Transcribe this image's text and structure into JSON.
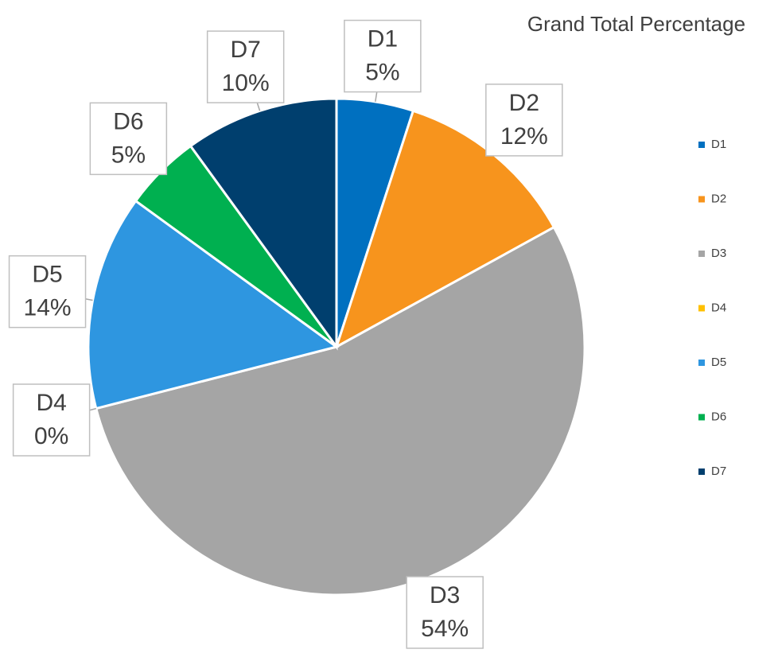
{
  "chart_data": {
    "type": "pie",
    "title": "Grand Total Percentage",
    "categories": [
      "D1",
      "D2",
      "D3",
      "D4",
      "D5",
      "D6",
      "D7"
    ],
    "values": [
      5,
      12,
      54,
      0,
      14,
      5,
      10
    ],
    "value_labels": [
      "5%",
      "12%",
      "54%",
      "0%",
      "14%",
      "5%",
      "10%"
    ],
    "colors": [
      "#0070c0",
      "#f7941d",
      "#a5a5a5",
      "#ffc000",
      "#2e96e0",
      "#00b050",
      "#003f6e"
    ],
    "legend": "right"
  }
}
